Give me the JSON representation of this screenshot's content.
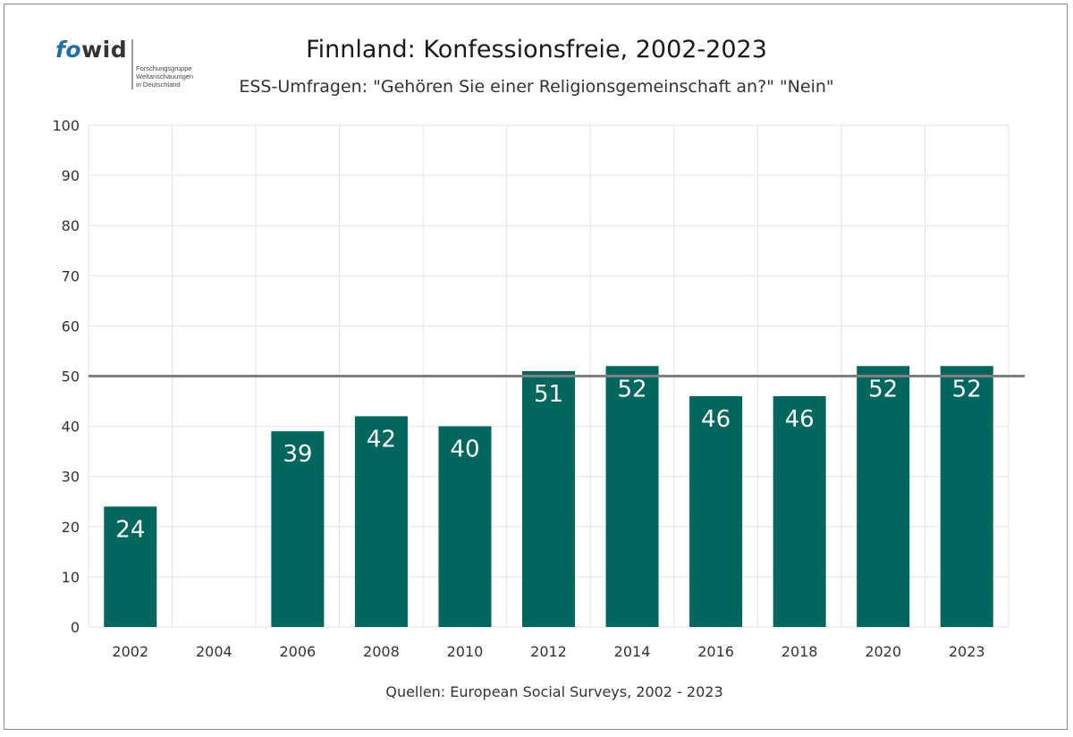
{
  "logo": {
    "wordmark_fo": "fo",
    "wordmark_wid": "wid",
    "tagline": [
      "Forschungsgruppe",
      "Weltanschauungen",
      "in Deutschland"
    ]
  },
  "chart_data": {
    "type": "bar",
    "title": "Finnland: Konfessionsfreie, 2002-2023",
    "subtitle": "ESS-Umfragen: \"Gehören Sie einer Religionsgemeinschaft an?\" \"Nein\"",
    "source": "Quellen: European Social Surveys, 2002 - 2023",
    "categories": [
      "2002",
      "2004",
      "2006",
      "2008",
      "2010",
      "2012",
      "2014",
      "2016",
      "2018",
      "2020",
      "2023"
    ],
    "values": [
      24,
      null,
      39,
      42,
      40,
      51,
      52,
      46,
      46,
      52,
      52
    ],
    "ylim": [
      0,
      100
    ],
    "yticks": [
      0,
      10,
      20,
      30,
      40,
      50,
      60,
      70,
      80,
      90,
      100
    ],
    "reference_line": 50,
    "grid": true,
    "bar_color": "#00675f",
    "reference_line_color": "#7f7f7f",
    "grid_color": "#e3e3e3",
    "label_color": "#ffffff"
  }
}
